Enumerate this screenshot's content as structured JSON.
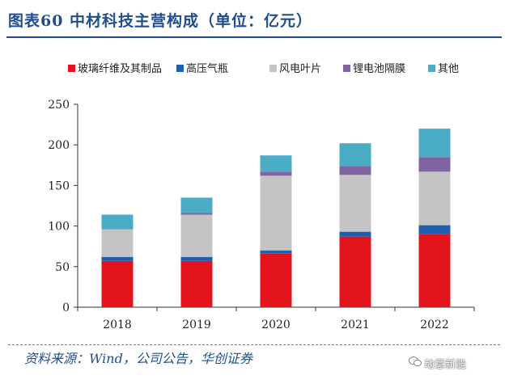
{
  "title": "图表60 中材科技主营构成（单位：亿元）",
  "source": "资料来源：Wind，公司公告，华创证券",
  "watermark": "动意新能",
  "colors": {
    "玻璃纤维及其制品": "#e3141b",
    "高压气瓶": "#1f5fad",
    "风电叶片": "#c4c4c4",
    "锂电池隔膜": "#8064a2",
    "其他": "#4bacc6"
  },
  "chart_data": {
    "type": "bar",
    "stacked": true,
    "categories": [
      "2018",
      "2019",
      "2020",
      "2021",
      "2022"
    ],
    "series": [
      {
        "name": "玻璃纤维及其制品",
        "values": [
          57,
          57,
          66,
          87,
          90
        ]
      },
      {
        "name": "高压气瓶",
        "values": [
          5,
          5,
          4,
          6,
          11
        ]
      },
      {
        "name": "风电叶片",
        "values": [
          34,
          52,
          92,
          70,
          66
        ]
      },
      {
        "name": "锂电池隔膜",
        "values": [
          0,
          2,
          5,
          11,
          18
        ]
      },
      {
        "name": "其他",
        "values": [
          18,
          19,
          20,
          28,
          35
        ]
      }
    ],
    "title": "",
    "xlabel": "",
    "ylabel": "",
    "ylim": [
      0,
      250
    ],
    "yticks": [
      0,
      50,
      100,
      150,
      200,
      250
    ],
    "grid": false,
    "legend_position": "top"
  }
}
